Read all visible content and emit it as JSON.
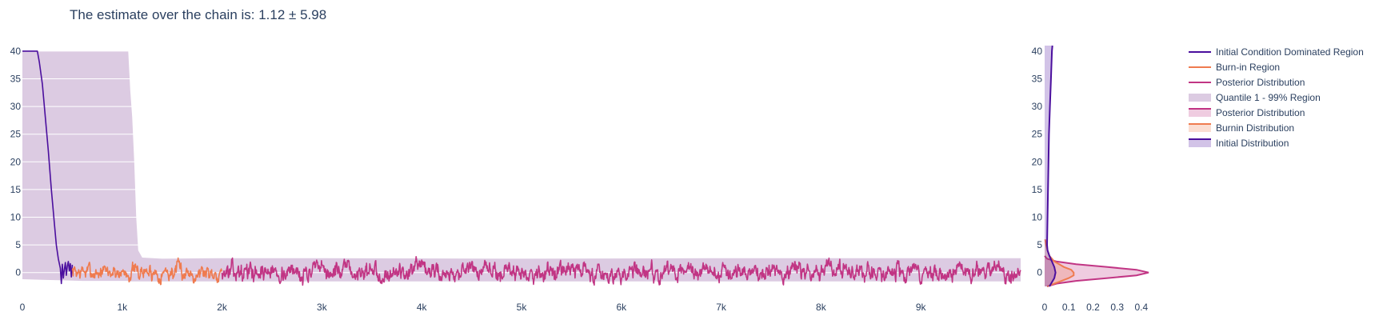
{
  "chart_data": {
    "type": "line",
    "title": "The estimate over the chain is: 1.12 ± 5.98",
    "colors": {
      "initial": "#4b0f9e",
      "burnin": "#ef7b4f",
      "posterior": "#c13584",
      "quantile_fill": "#dccbe2",
      "grid": "#ffffff"
    },
    "trace": {
      "xlim": [
        0,
        10000
      ],
      "ylim": [
        -2.5,
        41
      ],
      "x_ticks": [
        0,
        1000,
        2000,
        3000,
        4000,
        5000,
        6000,
        7000,
        8000,
        9000
      ],
      "x_tick_labels": [
        "0",
        "1k",
        "2k",
        "3k",
        "4k",
        "5k",
        "6k",
        "7k",
        "8k",
        "9k"
      ],
      "y_ticks": [
        0,
        5,
        10,
        15,
        20,
        25,
        30,
        35,
        40
      ],
      "y_tick_labels": [
        "0",
        "5",
        "10",
        "15",
        "20",
        "25",
        "30",
        "35",
        "40"
      ],
      "quantile_region": {
        "x": [
          0,
          200,
          400,
          600,
          800,
          1000,
          1060,
          1080,
          1100,
          1120,
          1140,
          1160,
          1200,
          1400,
          2000,
          3000,
          5000,
          7000,
          9000,
          10000
        ],
        "upper": [
          40,
          40,
          40,
          40,
          40,
          40,
          40,
          33,
          28,
          20,
          10,
          4,
          2.7,
          2.5,
          2.6,
          2.6,
          2.5,
          2.6,
          2.6,
          2.6
        ],
        "lower": [
          -1.2,
          -1.3,
          -1.4,
          -1.5,
          -1.5,
          -1.5,
          -1.5,
          -1.6,
          -1.6,
          -1.6,
          -1.6,
          -1.6,
          -1.6,
          -1.6,
          -1.6,
          -1.6,
          -1.6,
          -1.6,
          -1.6,
          -1.6
        ]
      },
      "series": [
        {
          "name": "Initial Condition Dominated Region",
          "x": [
            0,
            50,
            100,
            150,
            170,
            200,
            230,
            260,
            290,
            320,
            340,
            360,
            380,
            390,
            400,
            410,
            420,
            430,
            440,
            450,
            460,
            470,
            480,
            490,
            500
          ],
          "y": [
            40,
            40,
            40,
            40,
            38,
            34,
            28,
            22,
            15,
            9,
            5,
            2.5,
            0.8,
            -2,
            1.5,
            -1,
            0.5,
            1.8,
            -0.5,
            1.2,
            2,
            0.3,
            1.6,
            -0.8,
            1.4
          ]
        },
        {
          "name": "Burn-in Region",
          "x_range": [
            500,
            2000
          ],
          "seed": 7,
          "amplitude": 1.0,
          "mean": 0.1
        },
        {
          "name": "Posterior Distribution",
          "x_range": [
            2000,
            10000
          ],
          "seed": 13,
          "amplitude": 1.1,
          "mean": 0.1
        }
      ]
    },
    "marginal": {
      "xlim": [
        0,
        0.45
      ],
      "ylim": [
        -2.5,
        41
      ],
      "x_ticks": [
        0,
        0.1,
        0.2,
        0.3,
        0.4
      ],
      "x_tick_labels": [
        "0",
        "0.1",
        "0.2",
        "0.3",
        "0.4"
      ],
      "y_ticks": [
        0,
        5,
        10,
        15,
        20,
        25,
        30,
        35,
        40
      ],
      "y_tick_labels": [
        "0",
        "5",
        "10",
        "15",
        "20",
        "25",
        "30",
        "35",
        "40"
      ],
      "densities": [
        {
          "name": "Posterior Distribution",
          "y": [
            -2.5,
            -2,
            -1.5,
            -1,
            -0.5,
            0,
            0.5,
            1,
            1.5,
            2,
            2.5,
            3
          ],
          "density": [
            0.01,
            0.05,
            0.13,
            0.26,
            0.38,
            0.43,
            0.38,
            0.26,
            0.13,
            0.05,
            0.01,
            0.0
          ]
        },
        {
          "name": "Burnin Distribution",
          "y": [
            -2.5,
            -2,
            -1.5,
            -1,
            -0.5,
            0,
            0.5,
            1,
            1.5,
            2,
            2.5,
            3,
            4,
            5,
            6
          ],
          "density": [
            0.01,
            0.04,
            0.07,
            0.1,
            0.12,
            0.12,
            0.11,
            0.08,
            0.06,
            0.04,
            0.03,
            0.02,
            0.012,
            0.006,
            0.002
          ]
        },
        {
          "name": "Initial Distribution",
          "y": [
            -2.5,
            -1,
            0,
            1,
            2,
            3,
            4,
            5,
            10,
            15,
            20,
            25,
            30,
            35,
            40,
            41
          ],
          "density": [
            0.02,
            0.04,
            0.045,
            0.04,
            0.03,
            0.02,
            0.012,
            0.01,
            0.012,
            0.014,
            0.016,
            0.018,
            0.022,
            0.026,
            0.03,
            0.032
          ]
        }
      ]
    },
    "legend": {
      "placement": "top-right",
      "items": [
        {
          "label": "Initial Condition Dominated Region",
          "kind": "line",
          "color": "#4b0f9e"
        },
        {
          "label": "Burn-in Region",
          "kind": "line",
          "color": "#ef7b4f"
        },
        {
          "label": "Posterior Distribution",
          "kind": "line",
          "color": "#c13584"
        },
        {
          "label": "Quantile 1 - 99% Region",
          "kind": "fill",
          "color": "#dccbe2"
        },
        {
          "label": "Posterior Distribution",
          "kind": "fill-line",
          "color": "#c13584"
        },
        {
          "label": "Burnin Distribution",
          "kind": "fill-line",
          "color": "#ef7b4f"
        },
        {
          "label": "Initial Distribution",
          "kind": "fill-line",
          "color": "#4b0f9e"
        }
      ]
    }
  }
}
